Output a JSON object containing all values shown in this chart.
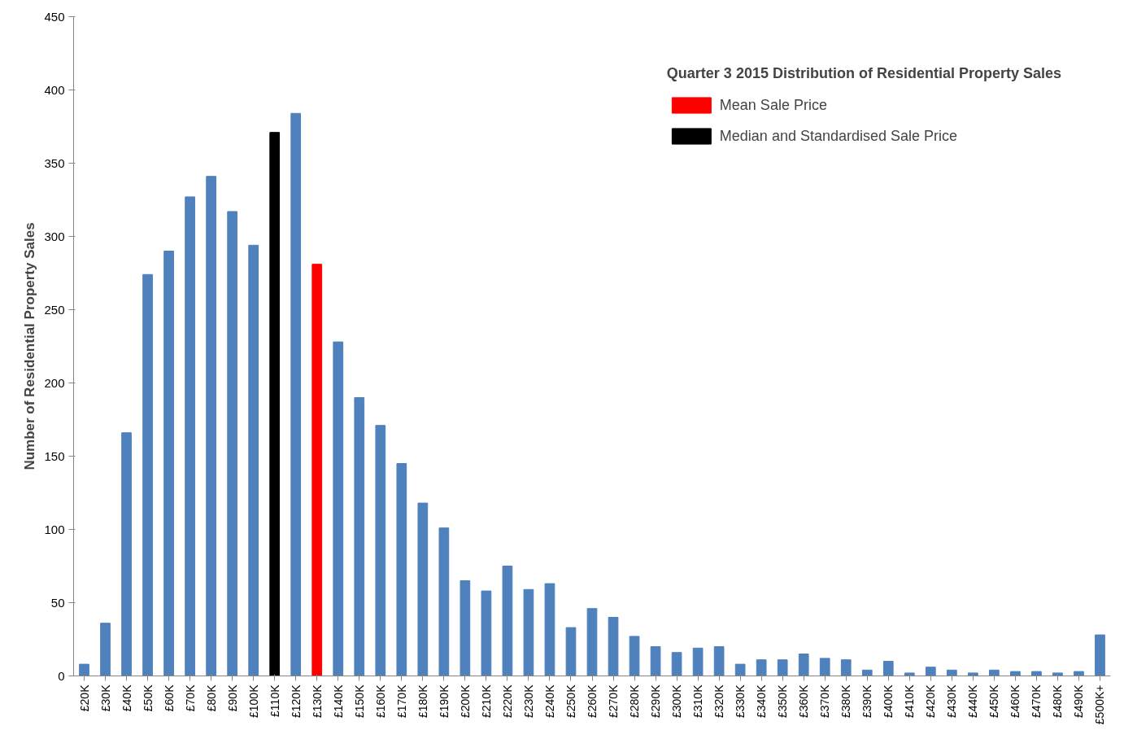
{
  "chart_data": {
    "type": "bar",
    "ylabel": "Number of Residential Property Sales",
    "legend_title": "Quarter 3 2015 Distribution of Residential Property Sales",
    "categories": [
      "£20K",
      "£30K",
      "£40K",
      "£50K",
      "£60K",
      "£70K",
      "£80K",
      "£90K",
      "£100K",
      "£110K",
      "£120K",
      "£130K",
      "£140K",
      "£150K",
      "£160K",
      "£170K",
      "£180K",
      "£190K",
      "£200K",
      "£210K",
      "£220K",
      "£230K",
      "£240K",
      "£250K",
      "£260K",
      "£270K",
      "£280K",
      "£290K",
      "£300K",
      "£310K",
      "£320K",
      "£330K",
      "£340K",
      "£350K",
      "£360K",
      "£370K",
      "£380K",
      "£390K",
      "£400K",
      "£410K",
      "£420K",
      "£430K",
      "£440K",
      "£450K",
      "£460K",
      "£470K",
      "£480K",
      "£490K",
      "£500K+"
    ],
    "series": [
      {
        "color": "#4f81bd",
        "values": [
          8,
          36,
          166,
          274,
          290,
          327,
          341,
          317,
          294,
          null,
          384,
          null,
          228,
          190,
          171,
          145,
          118,
          101,
          65,
          58,
          75,
          59,
          63,
          33,
          46,
          40,
          27,
          20,
          16,
          19,
          20,
          8,
          11,
          11,
          15,
          12,
          11,
          4,
          10,
          2,
          6,
          4,
          2,
          4,
          3,
          3,
          2,
          3,
          28
        ]
      },
      {
        "name": "Mean Sale Price",
        "color": "#ff0000",
        "values": [
          null,
          null,
          null,
          null,
          null,
          null,
          null,
          null,
          null,
          null,
          null,
          281,
          null,
          null,
          null,
          null,
          null,
          null,
          null,
          null,
          null,
          null,
          null,
          null,
          null,
          null,
          null,
          null,
          null,
          null,
          null,
          null,
          null,
          null,
          null,
          null,
          null,
          null,
          null,
          null,
          null,
          null,
          null,
          null,
          null,
          null,
          null,
          null,
          null
        ]
      },
      {
        "name": "Median and Standardised Sale Price",
        "color": "#000000",
        "values": [
          null,
          null,
          null,
          null,
          null,
          null,
          null,
          null,
          null,
          371,
          null,
          null,
          null,
          null,
          null,
          null,
          null,
          null,
          null,
          null,
          null,
          null,
          null,
          null,
          null,
          null,
          null,
          null,
          null,
          null,
          null,
          null,
          null,
          null,
          null,
          null,
          null,
          null,
          null,
          null,
          null,
          null,
          null,
          null,
          null,
          null,
          null,
          null,
          null
        ]
      }
    ],
    "ylim": [
      0,
      450
    ],
    "yticks": [
      0,
      50,
      100,
      150,
      200,
      250,
      300,
      350,
      400,
      450
    ],
    "grid": false,
    "legend": "top right"
  }
}
